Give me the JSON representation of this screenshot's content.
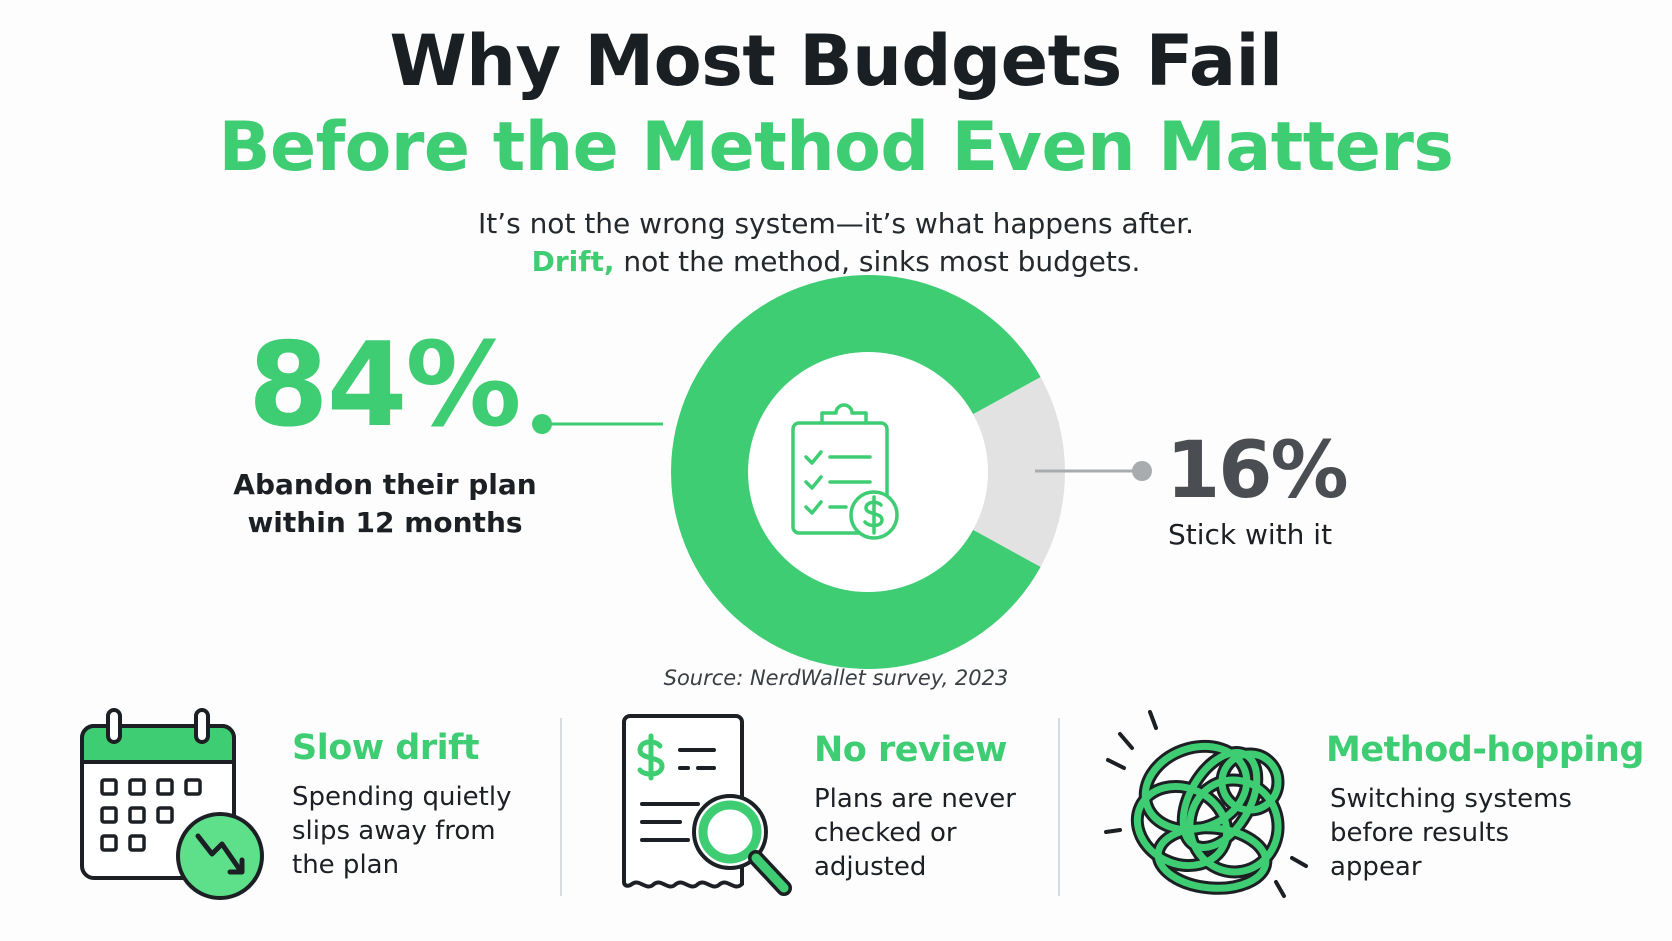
{
  "header": {
    "title": "Why Most Budgets Fail",
    "subtitle": "Before the Method Even Matters",
    "tagline_line1": "It’s not the wrong system—it’s what happens after.",
    "tagline_accent": "Drift,",
    "tagline_rest": " not the method, sinks most budgets."
  },
  "chart_data": {
    "type": "pie",
    "donut": true,
    "slices": [
      {
        "label": "Abandon their plan within 12 months",
        "value": 84,
        "display": "84%",
        "color": "#3fcd73"
      },
      {
        "label": "Stick with it",
        "value": 16,
        "display": "16%",
        "color": "#e2e2e2"
      }
    ],
    "center_icon": "clipboard-checklist-dollar-icon",
    "source": "Source: NerdWallet survey, 2023"
  },
  "stats": {
    "abandon": {
      "value": "84%",
      "label_line1": "Abandon their plan",
      "label_line2": "within 12 months"
    },
    "stick": {
      "value": "16%",
      "label": "Stick with it"
    }
  },
  "cards": [
    {
      "icon": "calendar-downtrend-icon",
      "title": "Slow drift",
      "desc_lines": [
        "Spending quietly",
        "slips away from",
        "the plan"
      ]
    },
    {
      "icon": "receipt-magnifier-icon",
      "title": "No review",
      "desc_lines": [
        "Plans are never",
        "checked or",
        "adjusted"
      ]
    },
    {
      "icon": "tangled-loops-icon",
      "title": "Method-hopping",
      "desc_lines": [
        "Switching systems",
        "before results",
        "appear"
      ]
    }
  ],
  "colors": {
    "accent": "#3fcd73",
    "accent_dark": "#1f8f46",
    "neutral": "#e2e2e2",
    "title": "#1a1f24"
  }
}
